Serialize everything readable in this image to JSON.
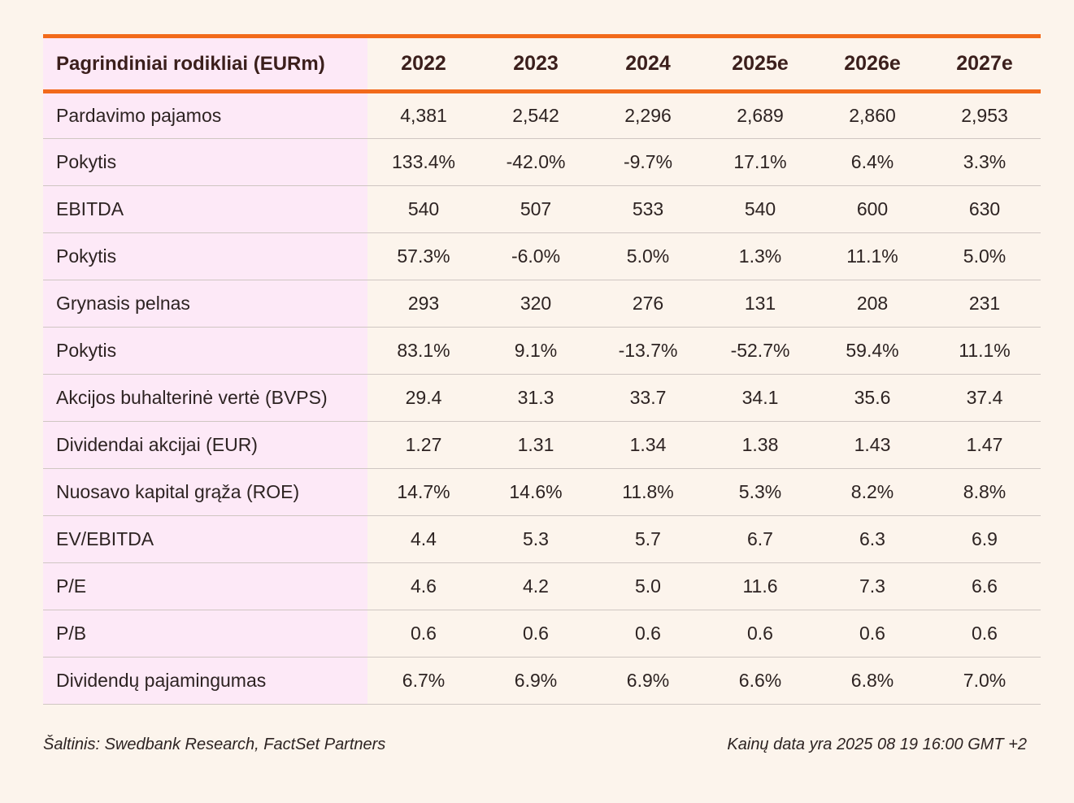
{
  "table": {
    "header": {
      "label": "Pagrindiniai rodikliai (EURm)",
      "years": [
        "2022",
        "2023",
        "2024",
        "2025e",
        "2026e",
        "2027e"
      ]
    },
    "rows": [
      {
        "label": "Pardavimo pajamos",
        "values": [
          "4,381",
          "2,542",
          "2,296",
          "2,689",
          "2,860",
          "2,953"
        ]
      },
      {
        "label": "Pokytis",
        "values": [
          "133.4%",
          "-42.0%",
          "-9.7%",
          "17.1%",
          "6.4%",
          "3.3%"
        ]
      },
      {
        "label": "EBITDA",
        "values": [
          "540",
          "507",
          "533",
          "540",
          "600",
          "630"
        ]
      },
      {
        "label": "Pokytis",
        "values": [
          "57.3%",
          "-6.0%",
          "5.0%",
          "1.3%",
          "11.1%",
          "5.0%"
        ]
      },
      {
        "label": "Grynasis pelnas",
        "values": [
          "293",
          "320",
          "276",
          "131",
          "208",
          "231"
        ]
      },
      {
        "label": "Pokytis",
        "values": [
          "83.1%",
          "9.1%",
          "-13.7%",
          "-52.7%",
          "59.4%",
          "11.1%"
        ]
      },
      {
        "label": "Akcijos buhalterinė vertė (BVPS)",
        "values": [
          "29.4",
          "31.3",
          "33.7",
          "34.1",
          "35.6",
          "37.4"
        ]
      },
      {
        "label": "Dividendai akcijai (EUR)",
        "values": [
          "1.27",
          "1.31",
          "1.34",
          "1.38",
          "1.43",
          "1.47"
        ]
      },
      {
        "label": "Nuosavo kapital grąža (ROE)",
        "values": [
          "14.7%",
          "14.6%",
          "11.8%",
          "5.3%",
          "8.2%",
          "8.8%"
        ]
      },
      {
        "label": "EV/EBITDA",
        "values": [
          "4.4",
          "5.3",
          "5.7",
          "6.7",
          "6.3",
          "6.9"
        ]
      },
      {
        "label": "P/E",
        "values": [
          "4.6",
          "4.2",
          "5.0",
          "11.6",
          "7.3",
          "6.6"
        ]
      },
      {
        "label": "P/B",
        "values": [
          "0.6",
          "0.6",
          "0.6",
          "0.6",
          "0.6",
          "0.6"
        ]
      },
      {
        "label": "Dividendų pajamingumas",
        "values": [
          "6.7%",
          "6.9%",
          "6.9%",
          "6.6%",
          "6.8%",
          "7.0%"
        ]
      }
    ]
  },
  "footer": {
    "source": "Šaltinis: Swedbank Research, FactSet Partners",
    "price_date": "Kainų data yra 2025 08 19 16:00 GMT +2"
  },
  "colors": {
    "accent": "#f26a1b",
    "label_bg": "#fde9f7",
    "page_bg": "#fcf4ec"
  }
}
